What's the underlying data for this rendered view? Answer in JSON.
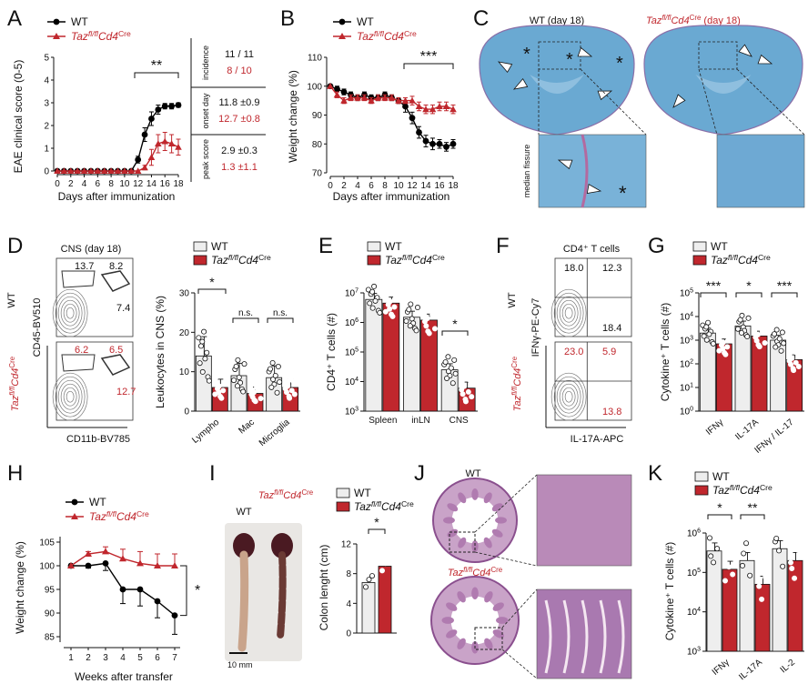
{
  "colors": {
    "wt": "#000000",
    "ko": "#c0272d",
    "bar_wt": "#eeeeee",
    "bar_ko": "#c0272d",
    "stain_blue": "#6aa9d2",
    "he_pink": "#b98ab8"
  },
  "legend": {
    "wt": "WT",
    "ko_prefix": "Taz",
    "ko_sup": "fl/fl",
    "ko_mid": "Cd4",
    "ko_sup2": "Cre"
  },
  "panelA": {
    "letter": "A",
    "ylabel": "EAE clinical score (0-5)",
    "xlabel": "Days after immunization",
    "sig": "**",
    "table": {
      "rows": [
        {
          "label": "incidence",
          "wt": "11 / 11",
          "ko": "8 / 10"
        },
        {
          "label": "onset day",
          "wt": "11.8 ±0.9",
          "ko": "12.7 ±0.8"
        },
        {
          "label": "peak score",
          "wt": "2.9 ±0.3",
          "ko": "1.3 ±1.1"
        }
      ]
    }
  },
  "panelB": {
    "letter": "B",
    "ylabel": "Weight change (%)",
    "xlabel": "Days after immunization",
    "sig": "***"
  },
  "panelC": {
    "letter": "C",
    "wt_title": "WT (day 18)",
    "ko_title_suffix": "(day 18)",
    "inset_label": "median fissure"
  },
  "panelD": {
    "letter": "D",
    "flow_title": "CNS (day 18)",
    "row_wt": "WT",
    "yaxis": "CD45-BV510",
    "xaxis": "CD11b-BV785",
    "wt_vals": [
      "13.7",
      "8.2",
      "7.4"
    ],
    "ko_vals": [
      "6.2",
      "6.5",
      "12.7"
    ],
    "ylabel": "Leukocytes in CNS (%)",
    "sig": [
      "*",
      "n.s.",
      "n.s."
    ]
  },
  "panelE": {
    "letter": "E",
    "ylabel": "CD4⁺ T cells (#)",
    "sig": "*"
  },
  "panelF": {
    "letter": "F",
    "title": "CD4⁺ T cells",
    "yaxis": "IFNγ-PE-Cy7",
    "xaxis": "IL-17A-APC",
    "row_wt": "WT",
    "wt_vals": [
      "18.0",
      "12.3",
      "18.4"
    ],
    "ko_vals": [
      "23.0",
      "5.9",
      "13.8"
    ]
  },
  "panelG": {
    "letter": "G",
    "ylabel": "Cytokine⁺ T cells (#)",
    "sig": [
      "***",
      "*",
      "***"
    ]
  },
  "panelH": {
    "letter": "H",
    "ylabel": "Weight change (%)",
    "xlabel": "Weeks after transfer",
    "sig": "*"
  },
  "panelI": {
    "letter": "I",
    "wt_label": "WT",
    "scale": "10 mm",
    "ylabel": "Colon lenght (cm)",
    "sig": "*"
  },
  "panelJ": {
    "letter": "J",
    "wt_label": "WT"
  },
  "panelK": {
    "letter": "K",
    "ylabel": "Cytokine⁺ T cells (#)",
    "sig": [
      "*",
      "**"
    ]
  },
  "chart_data": [
    {
      "id": "A",
      "type": "line",
      "x": [
        0,
        1,
        2,
        3,
        4,
        5,
        6,
        7,
        8,
        9,
        10,
        11,
        12,
        13,
        14,
        15,
        16,
        17,
        18
      ],
      "xlabel": "Days after immunization",
      "ylabel": "EAE clinical score (0-5)",
      "ylim": [
        0,
        5
      ],
      "xlim": [
        0,
        18
      ],
      "series": [
        {
          "name": "WT",
          "values": [
            0,
            0,
            0,
            0,
            0,
            0,
            0,
            0,
            0,
            0,
            0,
            0,
            0.5,
            1.6,
            2.3,
            2.7,
            2.85,
            2.85,
            2.9
          ],
          "err": [
            0,
            0,
            0,
            0,
            0,
            0,
            0,
            0,
            0,
            0,
            0,
            0,
            0.15,
            0.3,
            0.3,
            0.2,
            0.12,
            0.12,
            0.1
          ]
        },
        {
          "name": "Taz fl/fl Cd4 Cre",
          "values": [
            0,
            0,
            0,
            0,
            0,
            0,
            0,
            0,
            0,
            0,
            0,
            0,
            0,
            0.15,
            0.6,
            1.2,
            1.3,
            1.2,
            1.05
          ],
          "err": [
            0,
            0,
            0,
            0,
            0,
            0,
            0,
            0,
            0,
            0,
            0,
            0,
            0,
            0.1,
            0.35,
            0.4,
            0.4,
            0.4,
            0.35
          ]
        }
      ]
    },
    {
      "id": "B",
      "type": "line",
      "x": [
        0,
        1,
        2,
        3,
        4,
        5,
        6,
        7,
        8,
        9,
        10,
        11,
        12,
        13,
        14,
        15,
        16,
        17,
        18
      ],
      "xlabel": "Days after immunization",
      "ylabel": "Weight change (%)",
      "ylim": [
        70,
        110
      ],
      "xlim": [
        0,
        18
      ],
      "series": [
        {
          "name": "WT",
          "values": [
            100,
            99,
            98,
            97,
            96,
            97,
            96,
            96,
            97,
            96,
            95,
            93,
            89,
            84,
            81,
            80,
            80,
            79,
            80
          ],
          "err": [
            0,
            1,
            1,
            1,
            1,
            1,
            1,
            1,
            1,
            1,
            1,
            2,
            2,
            2,
            2,
            2,
            1.5,
            1.5,
            1.5
          ]
        },
        {
          "name": "Taz fl/fl Cd4 Cre",
          "values": [
            100,
            97,
            95,
            96,
            96,
            96,
            95,
            96,
            96,
            96,
            95,
            95,
            95,
            93,
            92,
            92,
            93,
            93,
            92
          ],
          "err": [
            0,
            1,
            1,
            1,
            1,
            1,
            1,
            1,
            1,
            1,
            1,
            1,
            1.5,
            1.5,
            1.5,
            1.5,
            1.5,
            1.5,
            1.5
          ]
        }
      ]
    },
    {
      "id": "D",
      "type": "bar",
      "categories": [
        "Lympho",
        "Mac",
        "Microglia"
      ],
      "ylabel": "Leukocytes in CNS (%)",
      "ylim": [
        0,
        30
      ],
      "series": [
        {
          "name": "WT",
          "values": [
            14,
            9,
            8.5
          ]
        },
        {
          "name": "Taz fl/fl Cd4 Cre",
          "values": [
            6,
            4.5,
            6
          ]
        }
      ]
    },
    {
      "id": "E",
      "type": "bar",
      "categories": [
        "Spleen",
        "inLN",
        "CNS"
      ],
      "ylabel": "CD4⁺ T cells (#)",
      "yscale": "log",
      "ylim": [
        1000,
        10000000
      ],
      "series": [
        {
          "name": "WT",
          "values": [
            6000000,
            1500000,
            25000
          ]
        },
        {
          "name": "Taz fl/fl Cd4 Cre",
          "values": [
            4500000,
            1200000,
            6000
          ]
        }
      ]
    },
    {
      "id": "G",
      "type": "bar",
      "categories": [
        "IFNγ",
        "IL-17A",
        "IFNγ / IL-17"
      ],
      "ylabel": "Cytokine⁺ T cells (#)",
      "yscale": "log",
      "ylim": [
        1,
        100000
      ],
      "series": [
        {
          "name": "WT",
          "values": [
            2000,
            4000,
            1000
          ]
        },
        {
          "name": "Taz fl/fl Cd4 Cre",
          "values": [
            700,
            1500,
            150
          ]
        }
      ]
    },
    {
      "id": "H",
      "type": "line",
      "x": [
        1,
        2,
        3,
        4,
        5,
        6,
        7
      ],
      "xlabel": "Weeks after transfer",
      "ylabel": "Weight change (%)",
      "ylim": [
        80,
        105
      ],
      "series": [
        {
          "name": "WT",
          "values": [
            100,
            100,
            100.5,
            95,
            95,
            92.5,
            89.5
          ],
          "err": [
            0,
            0.5,
            1.5,
            3,
            3.5,
            3.5,
            4
          ]
        },
        {
          "name": "Taz fl/fl Cd4 Cre",
          "values": [
            100,
            102.5,
            103,
            101.5,
            100.5,
            100,
            100
          ],
          "err": [
            0,
            0.5,
            1,
            2,
            2.5,
            2.5,
            2.5
          ]
        }
      ]
    },
    {
      "id": "I",
      "type": "bar",
      "categories": [
        "WT",
        "Taz fl/fl Cd4 Cre"
      ],
      "ylabel": "Colon lenght (cm)",
      "ylim": [
        0,
        12
      ],
      "series": [
        {
          "name": "Colon length",
          "values": [
            6.8,
            9.0
          ]
        }
      ]
    },
    {
      "id": "K",
      "type": "bar",
      "categories": [
        "IFNγ",
        "IL-17A",
        "IL-2"
      ],
      "ylabel": "Cytokine⁺ T cells (#)",
      "yscale": "log",
      "ylim": [
        1000,
        1000000
      ],
      "series": [
        {
          "name": "WT",
          "values": [
            350000,
            200000,
            400000
          ]
        },
        {
          "name": "Taz fl/fl Cd4 Cre",
          "values": [
            120000,
            50000,
            200000
          ]
        }
      ]
    }
  ]
}
